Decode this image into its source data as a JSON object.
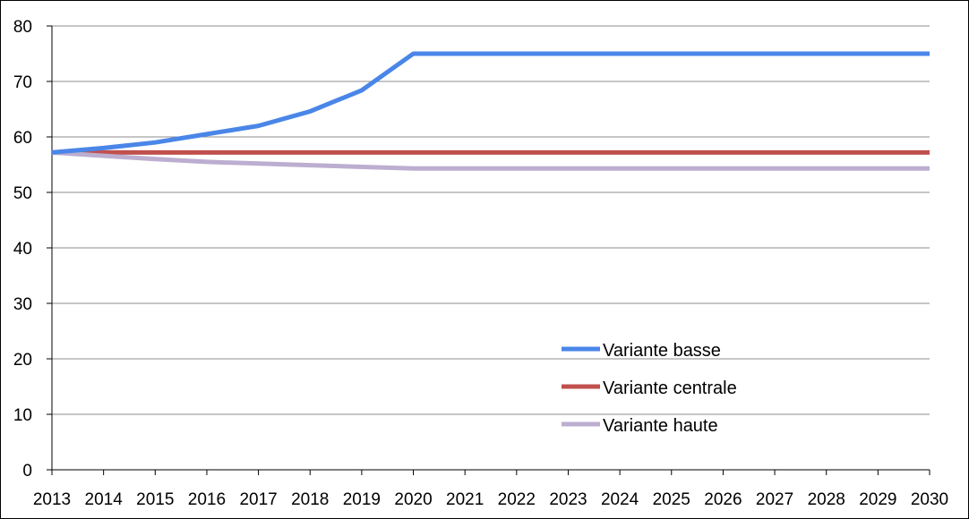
{
  "chart_data": {
    "type": "line",
    "x": [
      2013,
      2014,
      2015,
      2016,
      2017,
      2018,
      2019,
      2020,
      2021,
      2022,
      2023,
      2024,
      2025,
      2026,
      2027,
      2028,
      2029,
      2030
    ],
    "ylim": [
      0,
      80
    ],
    "yticks": [
      0,
      10,
      20,
      30,
      40,
      50,
      60,
      70,
      80
    ],
    "grid": true,
    "legend_position": "bottom-right",
    "series": [
      {
        "name": "Variante basse",
        "color": "#4a86e8",
        "values": [
          57.2,
          58.0,
          59.0,
          60.5,
          62.0,
          64.6,
          68.4,
          75.0,
          75.0,
          75.0,
          75.0,
          75.0,
          75.0,
          75.0,
          75.0,
          75.0,
          75.0,
          75.0
        ]
      },
      {
        "name": "Variante centrale",
        "color": "#c0504d",
        "values": [
          57.2,
          57.2,
          57.2,
          57.2,
          57.2,
          57.2,
          57.2,
          57.2,
          57.2,
          57.2,
          57.2,
          57.2,
          57.2,
          57.2,
          57.2,
          57.2,
          57.2,
          57.2
        ]
      },
      {
        "name": "Variante haute",
        "color": "#bcaed0",
        "values": [
          57.2,
          56.6,
          56.0,
          55.5,
          55.2,
          54.9,
          54.6,
          54.3,
          54.3,
          54.3,
          54.3,
          54.3,
          54.3,
          54.3,
          54.3,
          54.3,
          54.3,
          54.3
        ]
      }
    ]
  }
}
